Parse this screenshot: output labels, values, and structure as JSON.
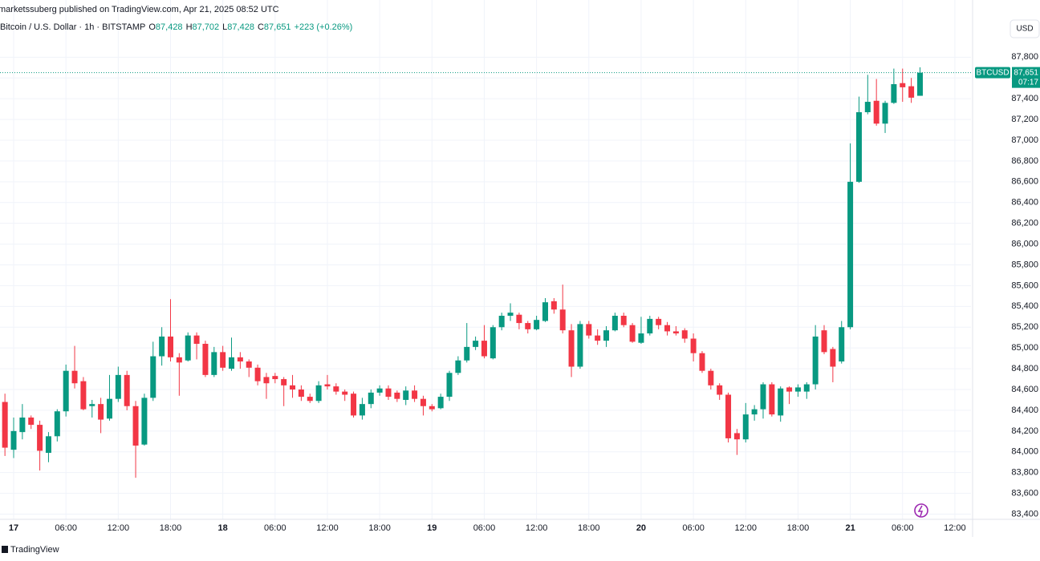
{
  "chart_data": {
    "type": "candlestick",
    "published": "marketssuberg published on TradingView.com, Apr 21, 2025 08:52 UTC",
    "title": "Bitcoin / U.S. Dollar · 1h · BITSTAMP",
    "ohlc_legend": [
      {
        "label": "O",
        "value": "87,428"
      },
      {
        "label": "H",
        "value": "87,702"
      },
      {
        "label": "L",
        "value": "87,428"
      },
      {
        "label": "C",
        "value": "87,651"
      }
    ],
    "change": "+223 (+0.26%)",
    "currency": "USD",
    "symbol_label": "BTCUSD",
    "last_price": {
      "value": 87651,
      "label": "87,651"
    },
    "countdown": "07:17",
    "brand": "TradingView",
    "up_color": "#089981",
    "down_color": "#f23645",
    "x": [
      "16 23:00",
      "17 00:00",
      "17 01:00",
      "17 02:00",
      "17 03:00",
      "17 04:00",
      "17 05:00",
      "17 06:00",
      "17 07:00",
      "17 08:00",
      "17 09:00",
      "17 10:00",
      "17 11:00",
      "17 12:00",
      "17 13:00",
      "17 14:00",
      "17 15:00",
      "17 16:00",
      "17 17:00",
      "17 18:00",
      "17 19:00",
      "17 20:00",
      "17 21:00",
      "17 22:00",
      "17 23:00",
      "18 00:00",
      "18 01:00",
      "18 02:00",
      "18 03:00",
      "18 04:00",
      "18 05:00",
      "18 06:00",
      "18 07:00",
      "18 08:00",
      "18 09:00",
      "18 10:00",
      "18 11:00",
      "18 12:00",
      "18 13:00",
      "18 14:00",
      "18 15:00",
      "18 16:00",
      "18 17:00",
      "18 18:00",
      "18 19:00",
      "18 20:00",
      "18 21:00",
      "18 22:00",
      "18 23:00",
      "19 00:00",
      "19 01:00",
      "19 02:00",
      "19 03:00",
      "19 04:00",
      "19 05:00",
      "19 06:00",
      "19 07:00",
      "19 08:00",
      "19 09:00",
      "19 10:00",
      "19 11:00",
      "19 12:00",
      "19 13:00",
      "19 14:00",
      "19 15:00",
      "19 16:00",
      "19 17:00",
      "19 18:00",
      "19 19:00",
      "19 20:00",
      "19 21:00",
      "19 22:00",
      "19 23:00",
      "20 00:00",
      "20 01:00",
      "20 02:00",
      "20 03:00",
      "20 04:00",
      "20 05:00",
      "20 06:00",
      "20 07:00",
      "20 08:00",
      "20 09:00",
      "20 10:00",
      "20 11:00",
      "20 12:00",
      "20 13:00",
      "20 14:00",
      "20 15:00",
      "20 16:00",
      "20 17:00",
      "20 18:00",
      "20 19:00",
      "20 20:00",
      "20 21:00",
      "20 22:00",
      "20 23:00",
      "21 00:00",
      "21 01:00",
      "21 02:00",
      "21 03:00",
      "21 04:00",
      "21 05:00",
      "21 06:00",
      "21 07:00",
      "21 08:00"
    ],
    "open": [
      84480,
      84020,
      84190,
      84330,
      84260,
      83990,
      84150,
      84390,
      84780,
      84680,
      84440,
      84460,
      84320,
      84510,
      84740,
      84440,
      84070,
      84520,
      84920,
      85110,
      84910,
      84880,
      85120,
      85040,
      84740,
      84960,
      84800,
      84910,
      84870,
      84810,
      84720,
      84730,
      84700,
      84640,
      84600,
      84530,
      84490,
      84650,
      84630,
      84580,
      84560,
      84350,
      84460,
      84570,
      84610,
      84570,
      84500,
      84590,
      84510,
      84440,
      84420,
      84530,
      84760,
      84880,
      85010,
      85070,
      84900,
      85200,
      85310,
      85320,
      85240,
      85180,
      85260,
      85450,
      85370,
      85170,
      84820,
      85230,
      85120,
      85070,
      85170,
      85310,
      85220,
      85050,
      85140,
      85280,
      85220,
      85160,
      85170,
      85090,
      84950,
      84780,
      84640,
      84550,
      84180,
      84120,
      84360,
      84410,
      84650,
      84350,
      84620,
      84580,
      84580,
      84650,
      85170,
      84990,
      84870,
      85200,
      86600,
      87270,
      87380,
      87160,
      87360,
      87550,
      87520,
      87428
    ],
    "high": [
      84560,
      84330,
      84460,
      84350,
      84300,
      84190,
      84410,
      84840,
      85020,
      84720,
      84500,
      84520,
      84740,
      84820,
      84780,
      84490,
      84560,
      85060,
      85200,
      85470,
      84950,
      85150,
      85150,
      85070,
      85010,
      85020,
      85100,
      84960,
      84890,
      84840,
      84760,
      84760,
      84720,
      84740,
      84640,
      84560,
      84680,
      84740,
      84660,
      84600,
      84580,
      84520,
      84600,
      84640,
      84640,
      84590,
      84630,
      84640,
      84540,
      84460,
      84560,
      84780,
      84920,
      85240,
      85110,
      85220,
      85220,
      85340,
      85430,
      85340,
      85260,
      85310,
      85480,
      85480,
      85610,
      85230,
      85260,
      85260,
      85180,
      85210,
      85340,
      85340,
      85240,
      85300,
      85310,
      85300,
      85250,
      85210,
      85190,
      85140,
      84970,
      84800,
      84660,
      84570,
      84220,
      84470,
      84450,
      84670,
      84670,
      84630,
      84630,
      84650,
      84670,
      85220,
      85220,
      85010,
      85260,
      86970,
      87420,
      87630,
      87590,
      87380,
      87690,
      87690,
      87600,
      87702
    ],
    "low": [
      83960,
      83940,
      84120,
      84220,
      83820,
      83900,
      84100,
      84340,
      84610,
      84400,
      84330,
      84180,
      84300,
      84480,
      84400,
      83750,
      84060,
      84490,
      84830,
      84870,
      84540,
      84870,
      84890,
      84720,
      84720,
      84780,
      84780,
      84800,
      84720,
      84640,
      84510,
      84660,
      84440,
      84520,
      84490,
      84470,
      84470,
      84600,
      84550,
      84490,
      84330,
      84310,
      84420,
      84540,
      84500,
      84480,
      84450,
      84480,
      84350,
      84390,
      84410,
      84490,
      84740,
      84860,
      84980,
      84900,
      84890,
      85170,
      85260,
      85180,
      85140,
      85170,
      85250,
      85330,
      85140,
      84720,
      84800,
      85090,
      85030,
      85010,
      85160,
      85200,
      85050,
      85040,
      85120,
      85180,
      85120,
      85120,
      85050,
      84870,
      84760,
      84600,
      84500,
      84090,
      83970,
      84090,
      84300,
      84320,
      84340,
      84290,
      84460,
      84530,
      84510,
      84600,
      84940,
      84670,
      84850,
      85180,
      86590,
      87250,
      87140,
      87070,
      87350,
      87370,
      87360,
      87428
    ],
    "close": [
      84040,
      84200,
      84330,
      84260,
      84010,
      84150,
      84390,
      84780,
      84660,
      84410,
      84460,
      84310,
      84510,
      84740,
      84440,
      84060,
      84520,
      84920,
      85110,
      84910,
      84860,
      85120,
      85040,
      84740,
      84960,
      84810,
      84910,
      84870,
      84810,
      84680,
      84660,
      84700,
      84640,
      84600,
      84530,
      84490,
      84640,
      84630,
      84580,
      84550,
      84350,
      84460,
      84570,
      84610,
      84530,
      84510,
      84590,
      84510,
      84440,
      84410,
      84530,
      84760,
      84880,
      85010,
      85070,
      84920,
      85200,
      85310,
      85340,
      85240,
      85180,
      85270,
      85440,
      85370,
      85170,
      84820,
      85230,
      85120,
      85070,
      85170,
      85310,
      85220,
      85060,
      85140,
      85280,
      85220,
      85160,
      85140,
      85090,
      84950,
      84780,
      84640,
      84550,
      84130,
      84120,
      84360,
      84410,
      84650,
      84360,
      84610,
      84580,
      84620,
      84650,
      85110,
      84960,
      84820,
      85200,
      86600,
      87270,
      87370,
      87160,
      87360,
      87540,
      87510,
      87410,
      87651
    ],
    "xlim": [
      "16 22:26",
      "21 13:51"
    ],
    "xticks": [
      {
        "value": "17 00:00",
        "label": "17"
      },
      {
        "value": "17 06:00",
        "label": "06:00"
      },
      {
        "value": "17 12:00",
        "label": "12:00"
      },
      {
        "value": "17 18:00",
        "label": "18:00"
      },
      {
        "value": "18 00:00",
        "label": "18"
      },
      {
        "value": "18 06:00",
        "label": "06:00"
      },
      {
        "value": "18 12:00",
        "label": "12:00"
      },
      {
        "value": "18 18:00",
        "label": "18:00"
      },
      {
        "value": "19 00:00",
        "label": "19"
      },
      {
        "value": "19 06:00",
        "label": "06:00"
      },
      {
        "value": "19 12:00",
        "label": "12:00"
      },
      {
        "value": "19 18:00",
        "label": "18:00"
      },
      {
        "value": "20 00:00",
        "label": "20"
      },
      {
        "value": "20 06:00",
        "label": "06:00"
      },
      {
        "value": "20 12:00",
        "label": "12:00"
      },
      {
        "value": "20 18:00",
        "label": "18:00"
      },
      {
        "value": "21 00:00",
        "label": "21"
      },
      {
        "value": "21 06:00",
        "label": "06:00"
      },
      {
        "value": "21 12:00",
        "label": "12:00"
      }
    ],
    "ylim": [
      83350,
      87980
    ],
    "yticks": [
      {
        "value": 83400,
        "label": "83,400"
      },
      {
        "value": 83600,
        "label": "83,600"
      },
      {
        "value": 83800,
        "label": "83,800"
      },
      {
        "value": 84000,
        "label": "84,000"
      },
      {
        "value": 84200,
        "label": "84,200"
      },
      {
        "value": 84400,
        "label": "84,400"
      },
      {
        "value": 84600,
        "label": "84,600"
      },
      {
        "value": 84800,
        "label": "84,800"
      },
      {
        "value": 85000,
        "label": "85,000"
      },
      {
        "value": 85200,
        "label": "85,200"
      },
      {
        "value": 85400,
        "label": "85,400"
      },
      {
        "value": 85600,
        "label": "85,600"
      },
      {
        "value": 85800,
        "label": "85,800"
      },
      {
        "value": 86000,
        "label": "86,000"
      },
      {
        "value": 86200,
        "label": "86,200"
      },
      {
        "value": 86400,
        "label": "86,400"
      },
      {
        "value": 86600,
        "label": "86,600"
      },
      {
        "value": 86800,
        "label": "86,800"
      },
      {
        "value": 87000,
        "label": "87,000"
      },
      {
        "value": 87200,
        "label": "87,200"
      },
      {
        "value": 87400,
        "label": "87,400"
      },
      {
        "value": 87600,
        "label": "87,600"
      },
      {
        "value": 87800,
        "label": "87,800"
      }
    ],
    "grid": true
  }
}
